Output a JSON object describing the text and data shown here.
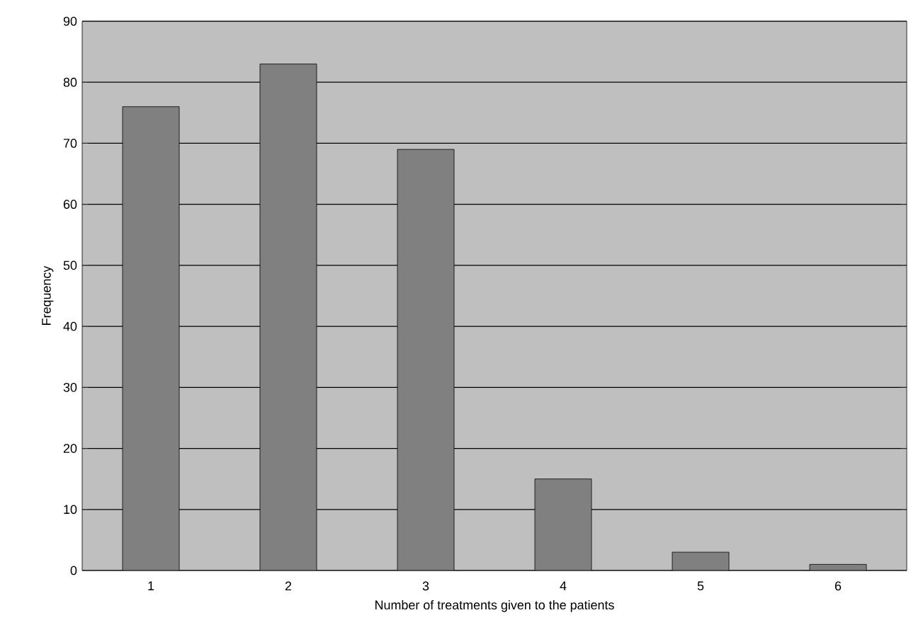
{
  "chart_data": {
    "type": "bar",
    "xlabel": "Number of treatments given to the patients",
    "ylabel": "Frequency",
    "categories": [
      "1",
      "2",
      "3",
      "4",
      "5",
      "6"
    ],
    "values": [
      76,
      83,
      69,
      15,
      3,
      1
    ],
    "color": "#808080",
    "ylim": [
      0,
      90
    ],
    "yticks": [
      0,
      10,
      20,
      30,
      40,
      50,
      60,
      70,
      80,
      90
    ],
    "grid": "y"
  }
}
